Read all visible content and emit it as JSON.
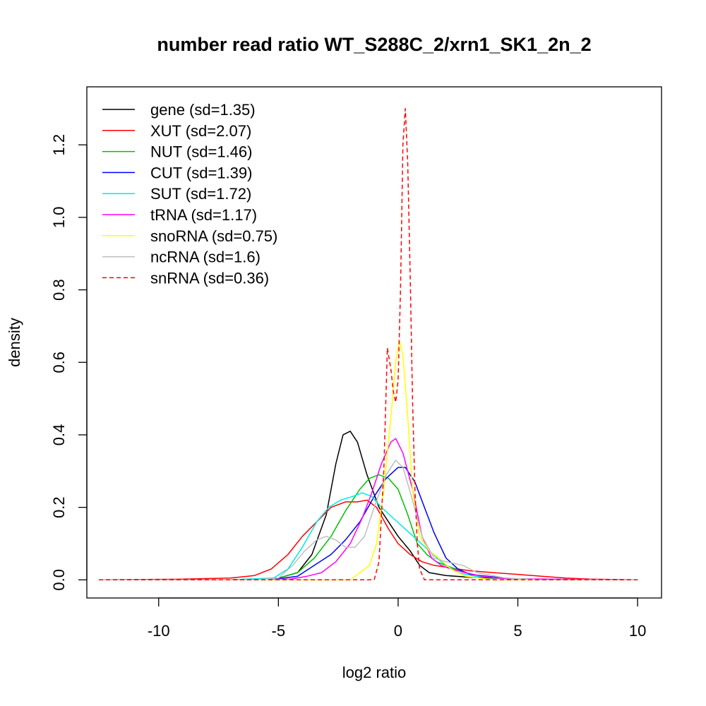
{
  "chart_data": {
    "type": "line",
    "title": "number read ratio WT_S288C_2/xrn1_SK1_2n_2",
    "xlabel": "log2 ratio",
    "ylabel": "density",
    "xlim": [
      -13.0,
      11.0
    ],
    "ylim": [
      -0.05,
      1.36
    ],
    "xticks": [
      -10,
      -5,
      0,
      5,
      10
    ],
    "xtick_labels": [
      "-10",
      "-5",
      "0",
      "5",
      "10"
    ],
    "yticks": [
      0.0,
      0.2,
      0.4,
      0.6,
      0.8,
      1.0,
      1.2
    ],
    "ytick_labels": [
      "0.0",
      "0.2",
      "0.4",
      "0.6",
      "0.8",
      "1.0",
      "1.2"
    ],
    "grid": false,
    "legend_position": "top-left",
    "series": [
      {
        "name": "gene (sd=1.35)",
        "color": "#000000",
        "dash": false,
        "points": [
          [
            -12.5,
            0
          ],
          [
            -7,
            0
          ],
          [
            -5,
            0.005
          ],
          [
            -4.2,
            0.02
          ],
          [
            -3.6,
            0.07
          ],
          [
            -3,
            0.18
          ],
          [
            -2.6,
            0.32
          ],
          [
            -2.3,
            0.4
          ],
          [
            -2.0,
            0.41
          ],
          [
            -1.7,
            0.38
          ],
          [
            -1.3,
            0.29
          ],
          [
            -0.8,
            0.2
          ],
          [
            -0.3,
            0.15
          ],
          [
            0,
            0.12
          ],
          [
            0.5,
            0.08
          ],
          [
            0.9,
            0.04
          ],
          [
            1.3,
            0.02
          ],
          [
            2,
            0.012
          ],
          [
            3,
            0.007
          ],
          [
            4.5,
            0.004
          ],
          [
            6,
            0.001
          ],
          [
            10,
            0
          ]
        ]
      },
      {
        "name": "XUT (sd=2.07)",
        "color": "#ff0000",
        "dash": false,
        "points": [
          [
            -12.5,
            0
          ],
          [
            -9,
            0.002
          ],
          [
            -7,
            0.005
          ],
          [
            -6,
            0.012
          ],
          [
            -5.3,
            0.03
          ],
          [
            -4.6,
            0.07
          ],
          [
            -4,
            0.12
          ],
          [
            -3.4,
            0.16
          ],
          [
            -2.8,
            0.2
          ],
          [
            -2.2,
            0.215
          ],
          [
            -1.7,
            0.215
          ],
          [
            -1.3,
            0.22
          ],
          [
            -0.9,
            0.2
          ],
          [
            -0.4,
            0.14
          ],
          [
            0,
            0.1
          ],
          [
            0.5,
            0.07
          ],
          [
            1,
            0.05
          ],
          [
            1.5,
            0.04
          ],
          [
            2,
            0.035
          ],
          [
            3,
            0.025
          ],
          [
            4,
            0.02
          ],
          [
            5,
            0.015
          ],
          [
            6,
            0.01
          ],
          [
            7,
            0.005
          ],
          [
            8,
            0.002
          ],
          [
            10,
            0
          ]
        ]
      },
      {
        "name": "NUT (sd=1.46)",
        "color": "#00c000",
        "dash": false,
        "points": [
          [
            -12.5,
            0
          ],
          [
            -7,
            0
          ],
          [
            -5,
            0.005
          ],
          [
            -4.2,
            0.02
          ],
          [
            -3.5,
            0.06
          ],
          [
            -2.8,
            0.12
          ],
          [
            -2.2,
            0.19
          ],
          [
            -1.6,
            0.25
          ],
          [
            -1.2,
            0.28
          ],
          [
            -0.8,
            0.29
          ],
          [
            -0.4,
            0.28
          ],
          [
            0,
            0.25
          ],
          [
            0.4,
            0.18
          ],
          [
            0.8,
            0.1
          ],
          [
            1.2,
            0.07
          ],
          [
            1.6,
            0.05
          ],
          [
            2.2,
            0.035
          ],
          [
            2.8,
            0.02
          ],
          [
            3.5,
            0.01
          ],
          [
            4.5,
            0.004
          ],
          [
            6,
            0
          ],
          [
            10,
            0
          ]
        ]
      },
      {
        "name": "CUT (sd=1.39)",
        "color": "#0000ff",
        "dash": false,
        "points": [
          [
            -12.5,
            0
          ],
          [
            -7,
            0
          ],
          [
            -5,
            0.003
          ],
          [
            -4.2,
            0.01
          ],
          [
            -3.5,
            0.04
          ],
          [
            -2.8,
            0.07
          ],
          [
            -2.2,
            0.11
          ],
          [
            -1.6,
            0.16
          ],
          [
            -1,
            0.23
          ],
          [
            -0.5,
            0.28
          ],
          [
            0,
            0.31
          ],
          [
            0.3,
            0.31
          ],
          [
            0.7,
            0.27
          ],
          [
            1.1,
            0.2
          ],
          [
            1.5,
            0.13
          ],
          [
            2,
            0.06
          ],
          [
            2.5,
            0.03
          ],
          [
            3,
            0.015
          ],
          [
            4,
            0.008
          ],
          [
            5,
            0.002
          ],
          [
            10,
            0
          ]
        ]
      },
      {
        "name": "SUT (sd=1.72)",
        "color": "#00e8e8",
        "dash": false,
        "points": [
          [
            -12.5,
            0
          ],
          [
            -7,
            0
          ],
          [
            -5.2,
            0.005
          ],
          [
            -4.6,
            0.03
          ],
          [
            -4,
            0.09
          ],
          [
            -3.4,
            0.16
          ],
          [
            -2.9,
            0.2
          ],
          [
            -2.4,
            0.22
          ],
          [
            -1.9,
            0.23
          ],
          [
            -1.5,
            0.24
          ],
          [
            -1.1,
            0.23
          ],
          [
            -0.7,
            0.2
          ],
          [
            -0.2,
            0.17
          ],
          [
            0.3,
            0.14
          ],
          [
            0.8,
            0.11
          ],
          [
            1.3,
            0.08
          ],
          [
            1.8,
            0.05
          ],
          [
            2.5,
            0.02
          ],
          [
            3.2,
            0.01
          ],
          [
            4.5,
            0.004
          ],
          [
            6,
            0
          ],
          [
            10,
            0
          ]
        ]
      },
      {
        "name": "tRNA (sd=1.17)",
        "color": "#ff00ff",
        "dash": false,
        "points": [
          [
            -12.5,
            0
          ],
          [
            -6,
            0
          ],
          [
            -4.5,
            0.002
          ],
          [
            -3.8,
            0.01
          ],
          [
            -3.2,
            0.02
          ],
          [
            -2.6,
            0.05
          ],
          [
            -2,
            0.1
          ],
          [
            -1.5,
            0.17
          ],
          [
            -1.1,
            0.24
          ],
          [
            -0.7,
            0.32
          ],
          [
            -0.3,
            0.38
          ],
          [
            -0.1,
            0.39
          ],
          [
            0.2,
            0.35
          ],
          [
            0.6,
            0.25
          ],
          [
            1,
            0.12
          ],
          [
            1.4,
            0.06
          ],
          [
            1.8,
            0.04
          ],
          [
            2.2,
            0.03
          ],
          [
            2.8,
            0.02
          ],
          [
            3.5,
            0.01
          ],
          [
            4.5,
            0.003
          ],
          [
            10,
            0
          ]
        ]
      },
      {
        "name": "snoRNA (sd=0.75)",
        "color": "#ffff00",
        "dash": false,
        "points": [
          [
            -12.5,
            0
          ],
          [
            -2,
            0
          ],
          [
            -1.6,
            0.02
          ],
          [
            -1.2,
            0.04
          ],
          [
            -0.9,
            0.1
          ],
          [
            -0.6,
            0.25
          ],
          [
            -0.3,
            0.45
          ],
          [
            -0.1,
            0.6
          ],
          [
            0.05,
            0.66
          ],
          [
            0.2,
            0.62
          ],
          [
            0.4,
            0.45
          ],
          [
            0.6,
            0.25
          ],
          [
            0.9,
            0.12
          ],
          [
            1.3,
            0.08
          ],
          [
            1.7,
            0.06
          ],
          [
            2.2,
            0.03
          ],
          [
            2.8,
            0.01
          ],
          [
            4,
            0
          ],
          [
            10,
            0
          ]
        ]
      },
      {
        "name": "ncRNA (sd=1.6)",
        "color": "#bebebe",
        "dash": false,
        "points": [
          [
            -12.5,
            0
          ],
          [
            -6,
            0
          ],
          [
            -5,
            0.005
          ],
          [
            -4.4,
            0.04
          ],
          [
            -3.9,
            0.08
          ],
          [
            -3.4,
            0.11
          ],
          [
            -3,
            0.12
          ],
          [
            -2.6,
            0.11
          ],
          [
            -2.2,
            0.09
          ],
          [
            -1.8,
            0.09
          ],
          [
            -1.4,
            0.12
          ],
          [
            -1,
            0.2
          ],
          [
            -0.5,
            0.29
          ],
          [
            -0.1,
            0.33
          ],
          [
            0.2,
            0.31
          ],
          [
            0.6,
            0.22
          ],
          [
            1,
            0.12
          ],
          [
            1.5,
            0.06
          ],
          [
            2,
            0.05
          ],
          [
            2.7,
            0.04
          ],
          [
            3.3,
            0.02
          ],
          [
            4.5,
            0.005
          ],
          [
            6,
            0
          ],
          [
            10,
            0
          ]
        ]
      },
      {
        "name": "snRNA (sd=0.36)",
        "color": "#ff0000",
        "dash": true,
        "points": [
          [
            -12.5,
            0
          ],
          [
            -1,
            0
          ],
          [
            -0.8,
            0.05
          ],
          [
            -0.6,
            0.3
          ],
          [
            -0.45,
            0.64
          ],
          [
            -0.3,
            0.58
          ],
          [
            -0.2,
            0.52
          ],
          [
            -0.1,
            0.49
          ],
          [
            0,
            0.55
          ],
          [
            0.1,
            0.8
          ],
          [
            0.2,
            1.2
          ],
          [
            0.3,
            1.3
          ],
          [
            0.4,
            1.15
          ],
          [
            0.5,
            0.85
          ],
          [
            0.6,
            0.5
          ],
          [
            0.7,
            0.25
          ],
          [
            0.8,
            0.1
          ],
          [
            0.9,
            0.03
          ],
          [
            1.1,
            0
          ],
          [
            10,
            0
          ]
        ]
      }
    ]
  }
}
